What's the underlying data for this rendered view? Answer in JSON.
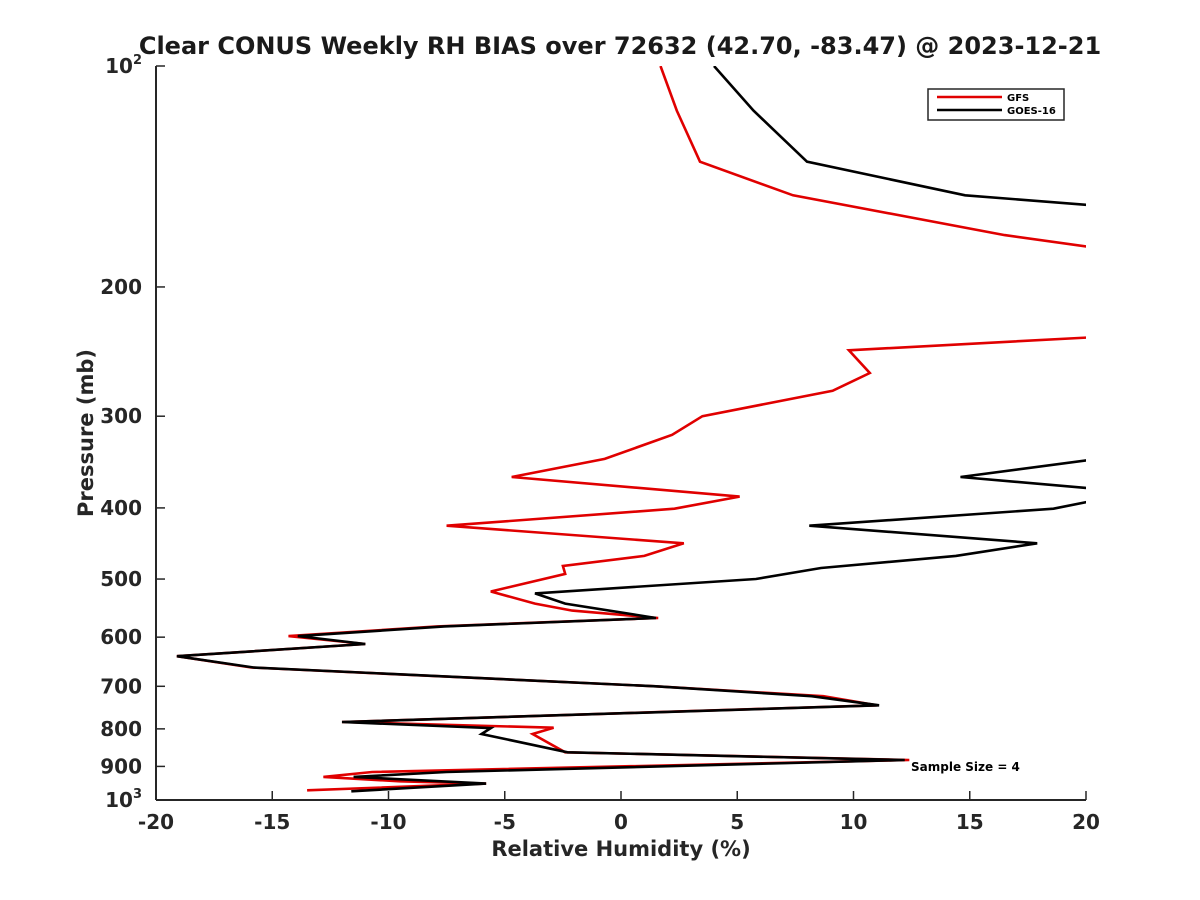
{
  "chart_data": {
    "type": "line",
    "title": "Clear CONUS Weekly RH BIAS over 72632 (42.70, -83.47) @ 2023-12-21",
    "xlabel": "Relative Humidity (%)",
    "ylabel": "Pressure (mb)",
    "xlim": [
      -20,
      20
    ],
    "ylim": [
      100,
      1000
    ],
    "yscale": "log",
    "y_reversed": true,
    "xticks": [
      "-20",
      "-15",
      "-10",
      "-5",
      "0",
      "5",
      "10",
      "15",
      "20"
    ],
    "yticks": [
      {
        "value": 100,
        "label": "10",
        "sup": "2"
      },
      {
        "value": 200,
        "label": "200"
      },
      {
        "value": 300,
        "label": "300"
      },
      {
        "value": 400,
        "label": "400"
      },
      {
        "value": 500,
        "label": "500"
      },
      {
        "value": 600,
        "label": "600"
      },
      {
        "value": 700,
        "label": "700"
      },
      {
        "value": 800,
        "label": "800"
      },
      {
        "value": 900,
        "label": "900"
      },
      {
        "value": 1000,
        "label": "10",
        "sup": "3"
      }
    ],
    "grid": false,
    "legend_position": "top-right",
    "annotation": "Sample Size = 4",
    "series": [
      {
        "name": "GFS",
        "color": "#e00000",
        "points": [
          [
            1.7,
            100
          ],
          [
            2.4,
            115
          ],
          [
            3.4,
            135
          ],
          [
            7.4,
            150
          ],
          [
            16.5,
            170
          ],
          [
            20.5,
            177
          ],
          null,
          [
            20.5,
            234
          ],
          [
            9.8,
            244
          ],
          [
            10.7,
            262
          ],
          [
            9.1,
            277
          ],
          [
            3.5,
            300
          ],
          [
            2.2,
            318
          ],
          [
            -0.7,
            343
          ],
          [
            -4.7,
            363
          ],
          [
            5.1,
            386
          ],
          [
            2.3,
            401
          ],
          [
            -7.5,
            423
          ],
          [
            2.7,
            447
          ],
          [
            1.0,
            465
          ],
          [
            -2.5,
            480
          ],
          [
            -2.4,
            492
          ],
          [
            -5.6,
            520
          ],
          [
            -3.7,
            540
          ],
          [
            -2.1,
            552
          ],
          [
            1.6,
            565
          ],
          [
            -7.9,
            580
          ],
          [
            -14.3,
            598
          ],
          [
            -11.0,
            613
          ],
          [
            -19.1,
            637
          ],
          [
            -15.9,
            660
          ],
          [
            1.5,
            700
          ],
          [
            8.7,
            722
          ],
          [
            11.0,
            743
          ],
          [
            -12.0,
            783
          ],
          [
            -2.9,
            797
          ],
          [
            -3.8,
            813
          ],
          [
            -2.4,
            861
          ],
          [
            12.4,
            882
          ],
          [
            -10.7,
            916
          ],
          [
            -12.8,
            930
          ],
          [
            -9.5,
            943
          ],
          [
            -5.8,
            950
          ],
          [
            -13.5,
            970
          ]
        ]
      },
      {
        "name": "GOES-16",
        "color": "#000000",
        "points": [
          [
            4.0,
            100
          ],
          [
            5.7,
            115
          ],
          [
            8.0,
            135
          ],
          [
            14.8,
            150
          ],
          [
            20.5,
            155
          ],
          null,
          [
            20.5,
            343
          ],
          [
            14.6,
            363
          ],
          [
            20.5,
            377
          ],
          null,
          [
            20.5,
            390
          ],
          [
            18.6,
            401
          ],
          [
            8.1,
            423
          ],
          [
            17.9,
            447
          ],
          [
            14.4,
            465
          ],
          [
            8.6,
            483
          ],
          [
            5.8,
            500
          ],
          [
            -3.7,
            523
          ],
          [
            -2.4,
            540
          ],
          [
            1.5,
            565
          ],
          [
            -7.6,
            580
          ],
          [
            -13.9,
            598
          ],
          [
            -11.0,
            613
          ],
          [
            -19.1,
            637
          ],
          [
            -15.8,
            660
          ],
          [
            1.5,
            700
          ],
          [
            8.2,
            722
          ],
          [
            11.1,
            743
          ],
          [
            -12.0,
            783
          ],
          [
            -5.6,
            798
          ],
          [
            -6.0,
            813
          ],
          [
            -2.3,
            861
          ],
          [
            12.2,
            882
          ],
          [
            -7.5,
            916
          ],
          [
            -11.5,
            930
          ],
          [
            -5.8,
            950
          ],
          [
            -11.6,
            973
          ]
        ]
      }
    ]
  }
}
